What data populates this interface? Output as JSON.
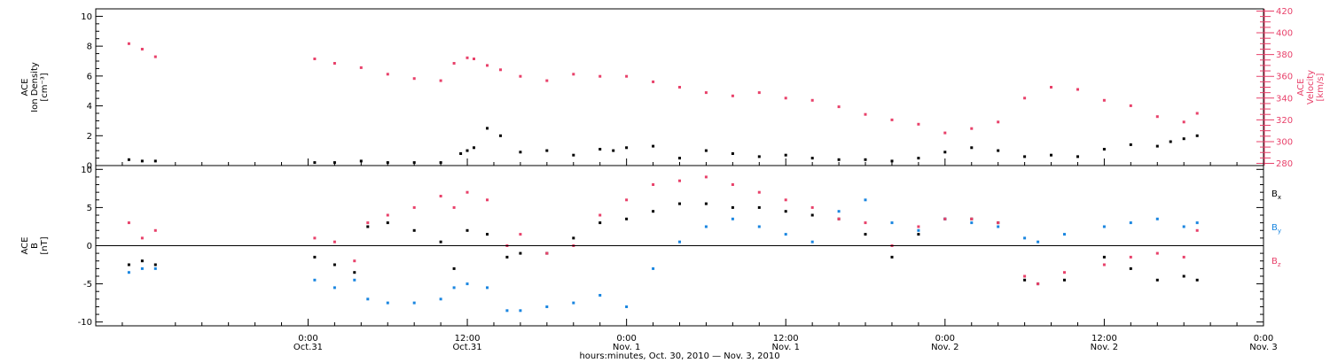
{
  "chart_data": [
    {
      "type": "scatter",
      "panel": "top",
      "ylabel_lines": [
        "ACE",
        "Ion Density",
        "[cm⁻³]"
      ],
      "ylim": [
        0,
        10.5
      ],
      "yticks": [
        0,
        2,
        4,
        6,
        8,
        10
      ],
      "ytick_labels": [
        "0",
        "2",
        "4",
        "6",
        "8",
        "10"
      ],
      "y2label_lines": [
        "ACE",
        "Velocity",
        "[km/s]"
      ],
      "y2lim": [
        278,
        422
      ],
      "y2ticks": [
        280,
        300,
        320,
        340,
        360,
        380,
        400,
        420
      ],
      "y2tick_labels": [
        "280",
        "300",
        "320",
        "340",
        "360",
        "380",
        "400",
        "420"
      ],
      "series": [
        {
          "key": "density",
          "axis": "left",
          "color": "#000000",
          "x_hours": [
            -13.5,
            -12.5,
            -11.5,
            0.5,
            2,
            4,
            6,
            8,
            10,
            11.5,
            12,
            12.5,
            13.5,
            14.5,
            16,
            18,
            20,
            22,
            23,
            24,
            26,
            28,
            30,
            32,
            34,
            36,
            38,
            40,
            42,
            44,
            46,
            48,
            50,
            52,
            54,
            56,
            58,
            60,
            62,
            64,
            65,
            66,
            67
          ],
          "values": [
            0.4,
            0.3,
            0.3,
            0.2,
            0.2,
            0.3,
            0.2,
            0.2,
            0.2,
            0.8,
            1.0,
            1.2,
            2.5,
            2.0,
            0.9,
            1.0,
            0.7,
            1.1,
            1.0,
            1.2,
            1.3,
            0.5,
            1.0,
            0.8,
            0.6,
            0.7,
            0.5,
            0.4,
            0.4,
            0.3,
            0.5,
            0.9,
            1.2,
            1.0,
            0.6,
            0.7,
            0.6,
            1.1,
            1.4,
            1.3,
            1.6,
            1.8,
            2.0
          ]
        },
        {
          "key": "velocity",
          "axis": "right",
          "color": "#e8416a",
          "x_hours": [
            -13.5,
            -12.5,
            -11.5,
            0.5,
            2,
            4,
            6,
            8,
            10,
            11,
            12,
            12.5,
            13.5,
            14.5,
            16,
            18,
            20,
            22,
            24,
            26,
            28,
            30,
            32,
            34,
            36,
            38,
            40,
            42,
            44,
            46,
            48,
            50,
            52,
            54,
            56,
            58,
            60,
            62,
            64,
            66,
            67
          ],
          "values": [
            390,
            385,
            378,
            376,
            372,
            368,
            362,
            358,
            356,
            372,
            377,
            376,
            370,
            366,
            360,
            356,
            362,
            360,
            360,
            355,
            350,
            345,
            342,
            345,
            340,
            338,
            332,
            325,
            320,
            316,
            308,
            312,
            318,
            340,
            350,
            348,
            338,
            333,
            323,
            318,
            326
          ]
        }
      ]
    },
    {
      "type": "scatter",
      "panel": "bottom",
      "ylabel_lines": [
        "ACE",
        "B",
        "[nT]"
      ],
      "ylim": [
        -10.5,
        10.5
      ],
      "yticks": [
        -10,
        -5,
        0,
        5,
        10
      ],
      "ytick_labels": [
        "-10",
        "-5",
        "0",
        "5",
        "10"
      ],
      "legend_position": "right",
      "series": [
        {
          "key": "bx",
          "name": "B",
          "subscript": "x",
          "color": "#000000",
          "x_hours": [
            -13.5,
            -12.5,
            -11.5,
            0.5,
            2,
            3.5,
            4.5,
            6,
            8,
            10,
            11,
            12,
            13.5,
            15,
            16,
            18,
            20,
            22,
            24,
            26,
            28,
            30,
            32,
            34,
            36,
            38,
            40,
            42,
            44,
            46,
            48,
            50,
            52,
            54,
            55,
            57,
            60,
            62,
            64,
            66,
            67
          ],
          "values": [
            -2.5,
            -2.0,
            -2.5,
            -1.5,
            -2.5,
            -3.5,
            2.5,
            3.0,
            2.0,
            0.5,
            -3.0,
            2.0,
            1.5,
            -1.5,
            -1.0,
            -1.0,
            1.0,
            3.0,
            3.5,
            4.5,
            5.5,
            5.5,
            5.0,
            5.0,
            4.5,
            4.0,
            3.5,
            1.5,
            -1.5,
            1.5,
            3.5,
            3.5,
            3.0,
            -4.5,
            -5.0,
            -4.5,
            -1.5,
            -3.0,
            -4.5,
            -4.0,
            -4.5
          ]
        },
        {
          "key": "by",
          "name": "B",
          "subscript": "y",
          "color": "#1a86e0",
          "x_hours": [
            -13.5,
            -12.5,
            -11.5,
            0.5,
            2,
            3.5,
            4.5,
            6,
            8,
            10,
            11,
            12,
            13.5,
            15,
            16,
            18,
            20,
            22,
            24,
            26,
            28,
            30,
            32,
            34,
            36,
            38,
            40,
            42,
            44,
            46,
            48,
            50,
            52,
            54,
            55,
            57,
            60,
            62,
            64,
            66,
            67
          ],
          "values": [
            -3.5,
            -3.0,
            -3.0,
            -4.5,
            -5.5,
            -4.5,
            -7.0,
            -7.5,
            -7.5,
            -7.0,
            -5.5,
            -5.0,
            -5.5,
            -8.5,
            -8.5,
            -8.0,
            -7.5,
            -6.5,
            -8.0,
            -3.0,
            0.5,
            2.5,
            3.5,
            2.5,
            1.5,
            0.5,
            4.5,
            6.0,
            3.0,
            2.0,
            3.5,
            3.0,
            2.5,
            1.0,
            0.5,
            1.5,
            2.5,
            3.0,
            3.5,
            2.5,
            3.0
          ]
        },
        {
          "key": "bz",
          "name": "B",
          "subscript": "z",
          "color": "#e8416a",
          "x_hours": [
            -13.5,
            -12.5,
            -11.5,
            0.5,
            2,
            3.5,
            4.5,
            6,
            8,
            10,
            11,
            12,
            13.5,
            15,
            16,
            18,
            20,
            22,
            24,
            26,
            28,
            30,
            32,
            34,
            36,
            38,
            40,
            42,
            44,
            46,
            48,
            50,
            52,
            54,
            55,
            57,
            60,
            62,
            64,
            66,
            67
          ],
          "values": [
            3.0,
            1.0,
            2.0,
            1.0,
            0.5,
            -2.0,
            3.0,
            4.0,
            5.0,
            6.5,
            5.0,
            7.0,
            6.0,
            0.0,
            1.5,
            -1.0,
            0.0,
            4.0,
            6.0,
            8.0,
            8.5,
            9.0,
            8.0,
            7.0,
            6.0,
            5.0,
            3.5,
            3.0,
            0.0,
            2.5,
            3.5,
            3.5,
            3.0,
            -4.0,
            -5.0,
            -3.5,
            -2.5,
            -1.5,
            -1.0,
            -1.5,
            2.0
          ]
        }
      ]
    }
  ],
  "xaxis": {
    "xlim_hours": [
      -16,
      72
    ],
    "ticks": [
      {
        "hour": 0,
        "time": "0:00",
        "date": "Oct.31"
      },
      {
        "hour": 12,
        "time": "12:00",
        "date": "Oct.31"
      },
      {
        "hour": 24,
        "time": "0:00",
        "date": "Nov. 1"
      },
      {
        "hour": 36,
        "time": "12:00",
        "date": "Nov. 1"
      },
      {
        "hour": 48,
        "time": "0:00",
        "date": "Nov. 2"
      },
      {
        "hour": 60,
        "time": "12:00",
        "date": "Nov. 2"
      },
      {
        "hour": 72,
        "time": "0:00",
        "date": "Nov. 3"
      }
    ],
    "label": "hours:minutes, Oct. 30, 2010 — Nov.  3, 2010"
  }
}
